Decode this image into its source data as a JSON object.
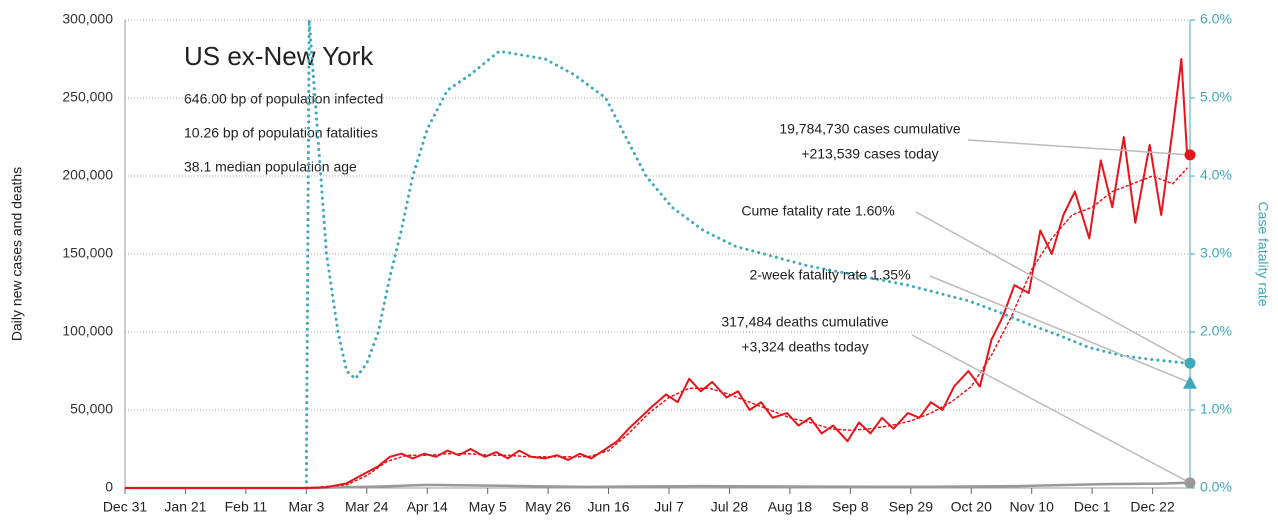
{
  "chart_data": {
    "type": "line",
    "title": "US ex-New York",
    "stats": [
      "646.00 bp of population infected",
      "10.26 bp of population fatalities",
      "38.1 median population age"
    ],
    "ylabel": "Daily new cases and deaths",
    "y2label": "Case fatality rate",
    "xlim": [
      0,
      370
    ],
    "xticks": [
      {
        "value": 0,
        "label": "Dec 31"
      },
      {
        "value": 21,
        "label": "Jan 21"
      },
      {
        "value": 42,
        "label": "Feb 11"
      },
      {
        "value": 63,
        "label": "Mar 3"
      },
      {
        "value": 84,
        "label": "Mar 24"
      },
      {
        "value": 105,
        "label": "Apr 14"
      },
      {
        "value": 126,
        "label": "May 5"
      },
      {
        "value": 147,
        "label": "May 26"
      },
      {
        "value": 168,
        "label": "Jun 16"
      },
      {
        "value": 189,
        "label": "Jul 7"
      },
      {
        "value": 210,
        "label": "Jul 28"
      },
      {
        "value": 231,
        "label": "Aug 18"
      },
      {
        "value": 252,
        "label": "Sep 8"
      },
      {
        "value": 273,
        "label": "Sep 29"
      },
      {
        "value": 294,
        "label": "Oct 20"
      },
      {
        "value": 315,
        "label": "Nov 10"
      },
      {
        "value": 336,
        "label": "Dec 1"
      },
      {
        "value": 357,
        "label": "Dec 22"
      }
    ],
    "ylim": [
      0,
      300000
    ],
    "yticks": [
      0,
      {
        "value": 50000,
        "label": "50,000"
      },
      {
        "value": 100000,
        "label": "100,000"
      },
      {
        "value": 150000,
        "label": "150,000"
      },
      {
        "value": 200000,
        "label": "200,000"
      },
      {
        "value": 250000,
        "label": "250,000"
      },
      {
        "value": 300000,
        "label": "300,000"
      }
    ],
    "y2lim": [
      0,
      6
    ],
    "y2ticks": [
      {
        "value": 0,
        "label": "0.0%"
      },
      {
        "value": 1,
        "label": "1.0%"
      },
      {
        "value": 2,
        "label": "2.0%"
      },
      {
        "value": 3,
        "label": "3.0%"
      },
      {
        "value": 4,
        "label": "4.0%"
      },
      {
        "value": 5,
        "label": "5.0%"
      },
      {
        "value": 6,
        "label": "6.0%"
      }
    ],
    "grid": true,
    "series": [
      {
        "color": "#3fa8bd",
        "style": "dotted",
        "width": 3,
        "axis": "y2",
        "x": [
          63,
          64,
          67,
          70,
          74,
          77,
          80,
          84,
          88,
          92,
          96,
          100,
          105,
          112,
          120,
          130,
          138,
          146,
          156,
          167,
          174,
          181,
          190,
          201,
          212,
          222,
          237,
          251,
          272,
          293,
          304,
          314,
          325,
          335,
          346,
          356,
          369
        ],
        "values": [
          0,
          6.0,
          4.5,
          3.0,
          2.0,
          1.5,
          1.4,
          1.6,
          2.0,
          2.7,
          3.3,
          4.0,
          4.6,
          5.1,
          5.3,
          5.6,
          5.55,
          5.5,
          5.3,
          5.0,
          4.5,
          4.0,
          3.6,
          3.3,
          3.1,
          3.0,
          2.85,
          2.75,
          2.6,
          2.4,
          2.25,
          2.1,
          1.95,
          1.8,
          1.7,
          1.65,
          1.6
        ]
      },
      {
        "color": "#999999",
        "style": "solid",
        "width": 2.5,
        "x": [
          0,
          63,
          90,
          105,
          130,
          160,
          200,
          240,
          280,
          310,
          340,
          360,
          369
        ],
        "values": [
          0,
          0,
          1000,
          2000,
          1500,
          700,
          1200,
          900,
          800,
          1200,
          2500,
          2800,
          3324
        ]
      },
      {
        "color": "#e8141b",
        "style": "dotted",
        "width": 1.5,
        "x": [
          63,
          77,
          84,
          91,
          98,
          105,
          112,
          119,
          126,
          133,
          140,
          147,
          154,
          161,
          168,
          175,
          182,
          189,
          196,
          203,
          210,
          217,
          224,
          231,
          238,
          245,
          252,
          259,
          266,
          273,
          280,
          287,
          294,
          301,
          308,
          315,
          322,
          329,
          336,
          343,
          350,
          357,
          364,
          369
        ],
        "values": [
          0,
          2000,
          8000,
          17000,
          21000,
          21000,
          22000,
          22000,
          21000,
          21000,
          20000,
          20000,
          20000,
          20000,
          24000,
          35000,
          48000,
          58000,
          64000,
          64000,
          60000,
          55000,
          50000,
          45000,
          42000,
          38000,
          37000,
          38000,
          40000,
          43000,
          48000,
          55000,
          65000,
          85000,
          110000,
          140000,
          160000,
          175000,
          180000,
          190000,
          195000,
          200000,
          195000,
          205000
        ]
      },
      {
        "color": "#e8141b",
        "style": "solid",
        "width": 2,
        "x": [
          0,
          63,
          70,
          77,
          84,
          88,
          92,
          96,
          100,
          104,
          108,
          112,
          116,
          120,
          125,
          129,
          133,
          137,
          141,
          146,
          150,
          154,
          158,
          162,
          167,
          171,
          175,
          179,
          183,
          188,
          192,
          196,
          200,
          204,
          209,
          213,
          217,
          221,
          225,
          230,
          234,
          238,
          242,
          246,
          251,
          255,
          259,
          263,
          267,
          272,
          276,
          280,
          284,
          288,
          293,
          297,
          301,
          305,
          309,
          314,
          318,
          322,
          326,
          330,
          335,
          339,
          343,
          347,
          351,
          356,
          360,
          364,
          367,
          369
        ],
        "values": [
          0,
          0,
          500,
          3000,
          10000,
          14000,
          20000,
          22000,
          19000,
          22000,
          20000,
          24000,
          21000,
          25000,
          20000,
          23000,
          19000,
          24000,
          20000,
          19000,
          21000,
          18000,
          22000,
          19000,
          25000,
          30000,
          38000,
          45000,
          52000,
          60000,
          55000,
          70000,
          62000,
          68000,
          58000,
          62000,
          50000,
          55000,
          45000,
          48000,
          40000,
          45000,
          35000,
          40000,
          30000,
          42000,
          35000,
          45000,
          38000,
          48000,
          45000,
          55000,
          50000,
          65000,
          75000,
          65000,
          95000,
          110000,
          130000,
          125000,
          165000,
          150000,
          175000,
          190000,
          160000,
          210000,
          180000,
          225000,
          170000,
          220000,
          175000,
          230000,
          275000,
          213539
        ]
      }
    ],
    "markers": [
      {
        "shape": "circle",
        "color": "#e8141b",
        "x": 370,
        "value": 213539,
        "lines": [
          "19,784,730 cases cumulative",
          "+213,539 cases today"
        ]
      },
      {
        "shape": "circle",
        "color": "#3fa8bd",
        "x": 370,
        "value": 1.6,
        "axis": "y2",
        "lines": [
          "Cume fatality rate 1.60%"
        ]
      },
      {
        "shape": "triangle",
        "color": "#3fa8bd",
        "x": 370,
        "value": 1.35,
        "axis": "y2",
        "lines": [
          "2-week fatality rate 1.35%"
        ]
      },
      {
        "shape": "circle",
        "color": "#999999",
        "x": 370,
        "value": 3324,
        "lines": [
          "317,484 deaths cumulative",
          "+3,324 deaths today"
        ]
      }
    ]
  }
}
